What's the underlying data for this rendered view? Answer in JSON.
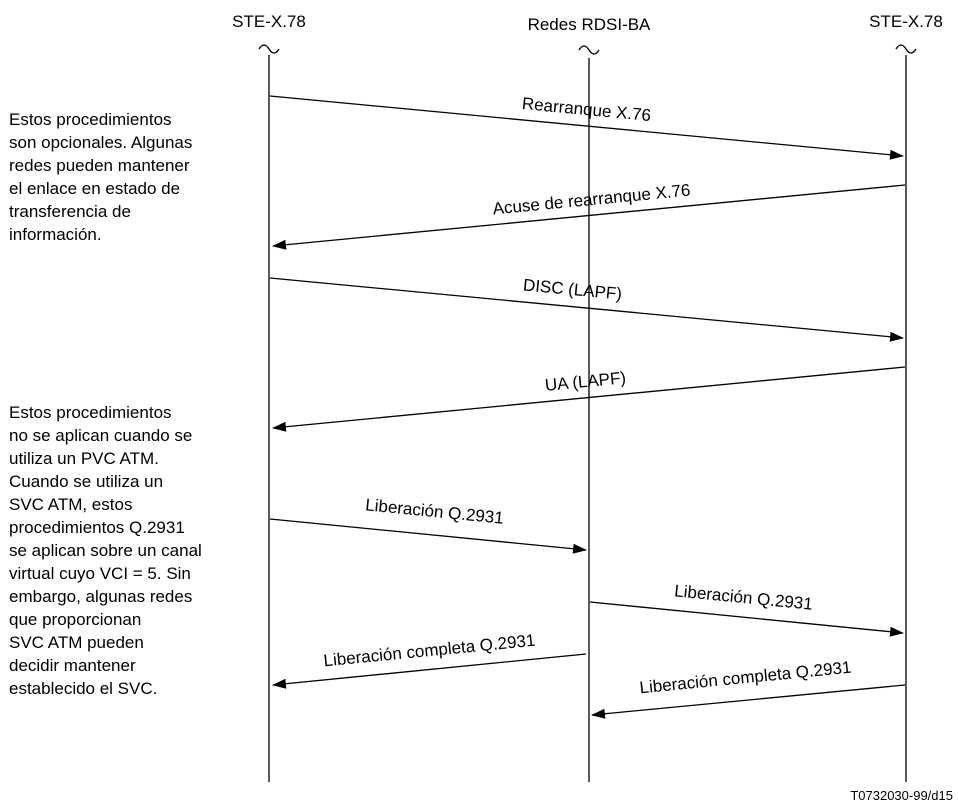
{
  "entities": {
    "left": "STE-X.78",
    "center": "Redes RDSI-BA",
    "right": "STE-X.78"
  },
  "messages": [
    {
      "label": "Rearranque X.76",
      "from": "left",
      "to": "right"
    },
    {
      "label": "Acuse de rearranque X.76",
      "from": "right",
      "to": "left"
    },
    {
      "label": "DISC (LAPF)",
      "from": "left",
      "to": "right"
    },
    {
      "label": "UA (LAPF)",
      "from": "right",
      "to": "left"
    },
    {
      "label": "Liberación Q.2931",
      "from": "left",
      "to": "center"
    },
    {
      "label": "Liberación Q.2931",
      "from": "center",
      "to": "right"
    },
    {
      "label": "Liberación completa Q.2931",
      "from": "center",
      "to": "left"
    },
    {
      "label": "Liberación completa Q.2931",
      "from": "right",
      "to": "center"
    }
  ],
  "notes": {
    "first": [
      "Estos procedimientos",
      "son opcionales. Algunas",
      "redes pueden mantener",
      "el enlace en estado de",
      "transferencia de",
      "información."
    ],
    "second": [
      "Estos procedimientos",
      "no se aplican cuando se",
      "utiliza un PVC ATM.",
      "Cuando se utiliza un",
      "SVC ATM, estos",
      "procedimientos Q.2931",
      "se aplican sobre un canal",
      "virtual cuyo VCI = 5. Sin",
      "embargo, algunas redes",
      "que proporcionan",
      "SVC ATM pueden",
      "decidir mantener",
      "establecido el SVC."
    ]
  },
  "figure_ref": "T0732030-99/d15"
}
